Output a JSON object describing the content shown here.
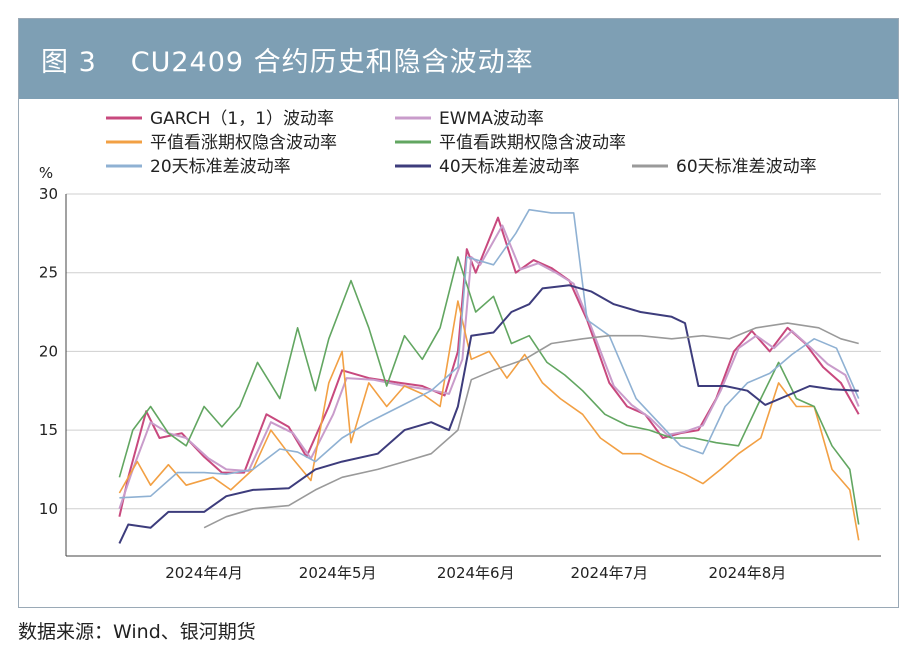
{
  "figure": {
    "number": "图 3",
    "title": "CU2409 合约历史和隐含波动率",
    "source": "数据来源：Wind、银河期货"
  },
  "chart_data": {
    "type": "line",
    "ylabel": "%",
    "ylim": [
      7,
      30
    ],
    "yticks": [
      10,
      15,
      20,
      25,
      30
    ],
    "x_range": [
      "2024-03-01",
      "2024-08-31"
    ],
    "xticks": [
      {
        "label": "2024年4月",
        "date": "2024-04-01"
      },
      {
        "label": "2024年5月",
        "date": "2024-05-01"
      },
      {
        "label": "2024年6月",
        "date": "2024-06-01"
      },
      {
        "label": "2024年7月",
        "date": "2024-07-01"
      },
      {
        "label": "2024年8月",
        "date": "2024-08-01"
      }
    ],
    "grid": true,
    "legend_position": "top",
    "series": [
      {
        "name": "GARCH（1，1）波动率",
        "color": "#c8497e",
        "width": 2,
        "points": [
          [
            "2024-03-13",
            9.5
          ],
          [
            "2024-03-15",
            12
          ],
          [
            "2024-03-19",
            16.2
          ],
          [
            "2024-03-22",
            14.5
          ],
          [
            "2024-03-27",
            14.8
          ],
          [
            "2024-04-01",
            13.3
          ],
          [
            "2024-04-05",
            12.3
          ],
          [
            "2024-04-10",
            12.3
          ],
          [
            "2024-04-15",
            16
          ],
          [
            "2024-04-20",
            15.2
          ],
          [
            "2024-04-24",
            13.3
          ],
          [
            "2024-04-29",
            16.5
          ],
          [
            "2024-05-02",
            18.8
          ],
          [
            "2024-05-08",
            18.3
          ],
          [
            "2024-05-15",
            18
          ],
          [
            "2024-05-20",
            17.8
          ],
          [
            "2024-05-25",
            17.2
          ],
          [
            "2024-05-28",
            20
          ],
          [
            "2024-05-30",
            26.5
          ],
          [
            "2024-06-01",
            25
          ],
          [
            "2024-06-06",
            28.5
          ],
          [
            "2024-06-10",
            25
          ],
          [
            "2024-06-14",
            25.8
          ],
          [
            "2024-06-18",
            25.3
          ],
          [
            "2024-06-22",
            24.5
          ],
          [
            "2024-06-26",
            22
          ],
          [
            "2024-07-01",
            18
          ],
          [
            "2024-07-05",
            16.5
          ],
          [
            "2024-07-09",
            16
          ],
          [
            "2024-07-13",
            14.5
          ],
          [
            "2024-07-17",
            14.8
          ],
          [
            "2024-07-21",
            15
          ],
          [
            "2024-07-25",
            17
          ],
          [
            "2024-07-29",
            20
          ],
          [
            "2024-08-02",
            21.3
          ],
          [
            "2024-08-06",
            20
          ],
          [
            "2024-08-10",
            21.5
          ],
          [
            "2024-08-14",
            20.5
          ],
          [
            "2024-08-18",
            19
          ],
          [
            "2024-08-22",
            18
          ],
          [
            "2024-08-26",
            16
          ]
        ]
      },
      {
        "name": "EWMA波动率",
        "color": "#c99ccb",
        "width": 2,
        "points": [
          [
            "2024-03-13",
            10
          ],
          [
            "2024-03-16",
            12.5
          ],
          [
            "2024-03-20",
            15.5
          ],
          [
            "2024-03-24",
            14.8
          ],
          [
            "2024-03-28",
            14.5
          ],
          [
            "2024-04-02",
            13.2
          ],
          [
            "2024-04-06",
            12.5
          ],
          [
            "2024-04-11",
            12.4
          ],
          [
            "2024-04-16",
            15.5
          ],
          [
            "2024-04-21",
            14.8
          ],
          [
            "2024-04-25",
            13.2
          ],
          [
            "2024-04-30",
            16
          ],
          [
            "2024-05-03",
            18.3
          ],
          [
            "2024-05-09",
            18.2
          ],
          [
            "2024-05-16",
            17.8
          ],
          [
            "2024-05-21",
            17.6
          ],
          [
            "2024-05-26",
            17.3
          ],
          [
            "2024-05-29",
            19.5
          ],
          [
            "2024-05-31",
            26
          ],
          [
            "2024-06-02",
            25.5
          ],
          [
            "2024-06-07",
            28
          ],
          [
            "2024-06-11",
            25.2
          ],
          [
            "2024-06-15",
            25.6
          ],
          [
            "2024-06-19",
            25
          ],
          [
            "2024-06-23",
            24.3
          ],
          [
            "2024-06-27",
            21.5
          ],
          [
            "2024-07-02",
            17.8
          ],
          [
            "2024-07-06",
            16.6
          ],
          [
            "2024-07-10",
            15.8
          ],
          [
            "2024-07-14",
            14.7
          ],
          [
            "2024-07-18",
            14.9
          ],
          [
            "2024-07-22",
            15.3
          ],
          [
            "2024-07-26",
            17.5
          ],
          [
            "2024-07-30",
            20.2
          ],
          [
            "2024-08-03",
            21
          ],
          [
            "2024-08-07",
            20.2
          ],
          [
            "2024-08-11",
            21.3
          ],
          [
            "2024-08-15",
            20.3
          ],
          [
            "2024-08-19",
            19.2
          ],
          [
            "2024-08-23",
            18.5
          ],
          [
            "2024-08-26",
            16.5
          ]
        ]
      },
      {
        "name": "平值看涨期权隐含波动率",
        "color": "#f2a044",
        "width": 1.6,
        "points": [
          [
            "2024-03-13",
            11
          ],
          [
            "2024-03-17",
            13
          ],
          [
            "2024-03-20",
            11.5
          ],
          [
            "2024-03-24",
            12.8
          ],
          [
            "2024-03-28",
            11.5
          ],
          [
            "2024-04-03",
            12
          ],
          [
            "2024-04-07",
            11.2
          ],
          [
            "2024-04-12",
            12.5
          ],
          [
            "2024-04-16",
            15
          ],
          [
            "2024-04-20",
            13.5
          ],
          [
            "2024-04-25",
            11.8
          ],
          [
            "2024-04-29",
            18
          ],
          [
            "2024-05-02",
            20
          ],
          [
            "2024-05-04",
            14.2
          ],
          [
            "2024-05-08",
            18
          ],
          [
            "2024-05-12",
            16.5
          ],
          [
            "2024-05-16",
            17.8
          ],
          [
            "2024-05-20",
            17.3
          ],
          [
            "2024-05-24",
            16.5
          ],
          [
            "2024-05-28",
            23.2
          ],
          [
            "2024-05-31",
            19.5
          ],
          [
            "2024-06-04",
            20
          ],
          [
            "2024-06-08",
            18.3
          ],
          [
            "2024-06-12",
            19.8
          ],
          [
            "2024-06-16",
            18
          ],
          [
            "2024-06-20",
            17
          ],
          [
            "2024-06-25",
            16
          ],
          [
            "2024-06-29",
            14.5
          ],
          [
            "2024-07-04",
            13.5
          ],
          [
            "2024-07-08",
            13.5
          ],
          [
            "2024-07-13",
            12.8
          ],
          [
            "2024-07-18",
            12.2
          ],
          [
            "2024-07-22",
            11.6
          ],
          [
            "2024-07-26",
            12.5
          ],
          [
            "2024-07-30",
            13.5
          ],
          [
            "2024-08-04",
            14.5
          ],
          [
            "2024-08-08",
            18
          ],
          [
            "2024-08-12",
            16.5
          ],
          [
            "2024-08-16",
            16.5
          ],
          [
            "2024-08-20",
            12.5
          ],
          [
            "2024-08-24",
            11.2
          ],
          [
            "2024-08-26",
            8
          ]
        ]
      },
      {
        "name": "平值看跌期权隐含波动率",
        "color": "#62a661",
        "width": 1.6,
        "points": [
          [
            "2024-03-13",
            12
          ],
          [
            "2024-03-16",
            15
          ],
          [
            "2024-03-20",
            16.5
          ],
          [
            "2024-03-24",
            14.8
          ],
          [
            "2024-03-28",
            14
          ],
          [
            "2024-04-01",
            16.5
          ],
          [
            "2024-04-05",
            15.2
          ],
          [
            "2024-04-09",
            16.5
          ],
          [
            "2024-04-13",
            19.3
          ],
          [
            "2024-04-18",
            17
          ],
          [
            "2024-04-22",
            21.5
          ],
          [
            "2024-04-26",
            17.5
          ],
          [
            "2024-04-29",
            20.8
          ],
          [
            "2024-05-04",
            24.5
          ],
          [
            "2024-05-08",
            21.5
          ],
          [
            "2024-05-12",
            17.8
          ],
          [
            "2024-05-16",
            21
          ],
          [
            "2024-05-20",
            19.5
          ],
          [
            "2024-05-24",
            21.5
          ],
          [
            "2024-05-28",
            26
          ],
          [
            "2024-06-01",
            22.5
          ],
          [
            "2024-06-05",
            23.5
          ],
          [
            "2024-06-09",
            20.5
          ],
          [
            "2024-06-13",
            21
          ],
          [
            "2024-06-17",
            19.3
          ],
          [
            "2024-06-21",
            18.5
          ],
          [
            "2024-06-25",
            17.5
          ],
          [
            "2024-06-30",
            16
          ],
          [
            "2024-07-05",
            15.3
          ],
          [
            "2024-07-10",
            15
          ],
          [
            "2024-07-15",
            14.5
          ],
          [
            "2024-07-20",
            14.5
          ],
          [
            "2024-07-25",
            14.2
          ],
          [
            "2024-07-30",
            14
          ],
          [
            "2024-08-04",
            17
          ],
          [
            "2024-08-08",
            19.3
          ],
          [
            "2024-08-12",
            17
          ],
          [
            "2024-08-16",
            16.5
          ],
          [
            "2024-08-20",
            14
          ],
          [
            "2024-08-24",
            12.5
          ],
          [
            "2024-08-26",
            9
          ]
        ]
      },
      {
        "name": "20天标准差波动率",
        "color": "#8fb1d3",
        "width": 1.6,
        "points": [
          [
            "2024-03-13",
            10.7
          ],
          [
            "2024-03-20",
            10.8
          ],
          [
            "2024-03-26",
            12.3
          ],
          [
            "2024-04-01",
            12.3
          ],
          [
            "2024-04-06",
            12.2
          ],
          [
            "2024-04-12",
            12.5
          ],
          [
            "2024-04-18",
            13.8
          ],
          [
            "2024-04-22",
            13.6
          ],
          [
            "2024-04-26",
            13
          ],
          [
            "2024-05-02",
            14.5
          ],
          [
            "2024-05-08",
            15.5
          ],
          [
            "2024-05-15",
            16.5
          ],
          [
            "2024-05-22",
            17.5
          ],
          [
            "2024-05-28",
            19
          ],
          [
            "2024-05-30",
            26
          ],
          [
            "2024-06-05",
            25.5
          ],
          [
            "2024-06-10",
            27.5
          ],
          [
            "2024-06-13",
            29
          ],
          [
            "2024-06-18",
            28.8
          ],
          [
            "2024-06-23",
            28.8
          ],
          [
            "2024-06-26",
            22
          ],
          [
            "2024-07-01",
            21
          ],
          [
            "2024-07-07",
            17
          ],
          [
            "2024-07-12",
            15.5
          ],
          [
            "2024-07-17",
            14
          ],
          [
            "2024-07-22",
            13.5
          ],
          [
            "2024-07-27",
            16.5
          ],
          [
            "2024-08-01",
            18
          ],
          [
            "2024-08-06",
            18.6
          ],
          [
            "2024-08-11",
            19.8
          ],
          [
            "2024-08-16",
            20.8
          ],
          [
            "2024-08-21",
            20.2
          ],
          [
            "2024-08-26",
            17
          ]
        ]
      },
      {
        "name": "40天标准差波动率",
        "color": "#3d3c7c",
        "width": 2,
        "points": [
          [
            "2024-03-13",
            7.8
          ],
          [
            "2024-03-15",
            9
          ],
          [
            "2024-03-20",
            8.8
          ],
          [
            "2024-03-24",
            9.8
          ],
          [
            "2024-04-01",
            9.8
          ],
          [
            "2024-04-06",
            10.8
          ],
          [
            "2024-04-12",
            11.2
          ],
          [
            "2024-04-20",
            11.3
          ],
          [
            "2024-04-26",
            12.5
          ],
          [
            "2024-05-02",
            13
          ],
          [
            "2024-05-10",
            13.5
          ],
          [
            "2024-05-16",
            15
          ],
          [
            "2024-05-22",
            15.5
          ],
          [
            "2024-05-26",
            15
          ],
          [
            "2024-05-28",
            16.5
          ],
          [
            "2024-05-31",
            21
          ],
          [
            "2024-06-05",
            21.2
          ],
          [
            "2024-06-09",
            22.5
          ],
          [
            "2024-06-13",
            23
          ],
          [
            "2024-06-16",
            24
          ],
          [
            "2024-06-22",
            24.2
          ],
          [
            "2024-06-27",
            23.8
          ],
          [
            "2024-07-02",
            23
          ],
          [
            "2024-07-08",
            22.5
          ],
          [
            "2024-07-15",
            22.2
          ],
          [
            "2024-07-18",
            21.8
          ],
          [
            "2024-07-21",
            17.8
          ],
          [
            "2024-07-27",
            17.8
          ],
          [
            "2024-08-01",
            17.5
          ],
          [
            "2024-08-05",
            16.6
          ],
          [
            "2024-08-10",
            17.2
          ],
          [
            "2024-08-15",
            17.8
          ],
          [
            "2024-08-20",
            17.6
          ],
          [
            "2024-08-26",
            17.5
          ]
        ]
      },
      {
        "name": "60天标准差波动率",
        "color": "#9a9a9a",
        "width": 1.6,
        "points": [
          [
            "2024-04-01",
            8.8
          ],
          [
            "2024-04-06",
            9.5
          ],
          [
            "2024-04-12",
            10
          ],
          [
            "2024-04-20",
            10.2
          ],
          [
            "2024-04-26",
            11.2
          ],
          [
            "2024-05-02",
            12
          ],
          [
            "2024-05-10",
            12.5
          ],
          [
            "2024-05-16",
            13
          ],
          [
            "2024-05-22",
            13.5
          ],
          [
            "2024-05-28",
            15
          ],
          [
            "2024-05-31",
            18.2
          ],
          [
            "2024-06-05",
            18.8
          ],
          [
            "2024-06-12",
            19.5
          ],
          [
            "2024-06-18",
            20.5
          ],
          [
            "2024-06-25",
            20.8
          ],
          [
            "2024-07-01",
            21
          ],
          [
            "2024-07-08",
            21
          ],
          [
            "2024-07-15",
            20.8
          ],
          [
            "2024-07-22",
            21
          ],
          [
            "2024-07-28",
            20.8
          ],
          [
            "2024-08-03",
            21.5
          ],
          [
            "2024-08-10",
            21.8
          ],
          [
            "2024-08-17",
            21.5
          ],
          [
            "2024-08-22",
            20.8
          ],
          [
            "2024-08-26",
            20.5
          ]
        ]
      }
    ]
  }
}
